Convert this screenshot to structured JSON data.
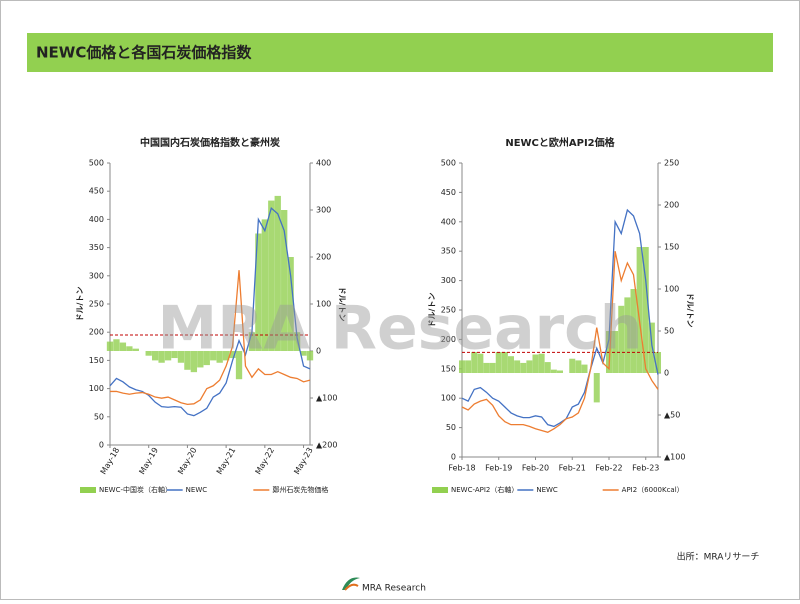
{
  "header": {
    "title": "NEWC価格と各国石炭価格指数"
  },
  "chart_data": [
    {
      "type": "line",
      "title": "中国国内石炭価格指数と豪州炭",
      "ylabel": "ドル/トン",
      "y2label": "ドル/トン",
      "categories": [
        "May-18",
        null,
        null,
        null,
        null,
        null,
        "May-19",
        null,
        null,
        null,
        null,
        null,
        "May-20",
        null,
        null,
        null,
        null,
        null,
        "May-21",
        null,
        null,
        null,
        null,
        null,
        "May-22",
        null,
        null,
        null,
        null,
        null,
        "May-23",
        null
      ],
      "ylim": [
        0,
        500
      ],
      "yticks": [
        0,
        50,
        100,
        150,
        200,
        250,
        300,
        350,
        400,
        450,
        500
      ],
      "y2lim": [
        -200,
        400
      ],
      "y2ticks": [
        {
          "value": -200,
          "label": "▲200"
        },
        {
          "value": -100,
          "label": "▲100"
        },
        0,
        100,
        200,
        300,
        400
      ],
      "ref_line": 195,
      "ref_color": "#c00000",
      "series": [
        {
          "name": "NEWC-中国炭（右軸）",
          "color": "#92d050",
          "axis": "y2",
          "kind": "area",
          "values": [
            20,
            25,
            18,
            10,
            5,
            0,
            -10,
            -20,
            -25,
            -20,
            -15,
            -25,
            -40,
            -45,
            -35,
            -30,
            -20,
            -25,
            -20,
            -15,
            -60,
            0,
            40,
            250,
            280,
            320,
            330,
            300,
            200,
            40,
            -10,
            -20
          ]
        },
        {
          "name": "NEWC",
          "color": "#4472c4",
          "values": [
            105,
            118,
            112,
            103,
            98,
            95,
            88,
            76,
            68,
            67,
            68,
            67,
            55,
            52,
            58,
            65,
            85,
            92,
            110,
            150,
            185,
            160,
            200,
            400,
            380,
            420,
            410,
            380,
            300,
            190,
            140,
            135
          ]
        },
        {
          "name": "鄭州石炭先物価格",
          "color": "#ed7d31",
          "values": [
            95,
            95,
            92,
            90,
            92,
            93,
            90,
            85,
            83,
            85,
            80,
            75,
            72,
            73,
            80,
            100,
            105,
            115,
            140,
            175,
            310,
            140,
            120,
            135,
            125,
            125,
            130,
            125,
            120,
            118,
            112,
            115
          ]
        }
      ]
    },
    {
      "type": "line",
      "title": "NEWCと欧州API2価格",
      "ylabel": "ドル/トン",
      "y2label": "ドル/トン",
      "categories": [
        "Feb-18",
        null,
        null,
        null,
        null,
        null,
        "Feb-19",
        null,
        null,
        null,
        null,
        null,
        "Feb-20",
        null,
        null,
        null,
        null,
        null,
        "Feb-21",
        null,
        null,
        null,
        null,
        null,
        "Feb-22",
        null,
        null,
        null,
        null,
        null,
        "Feb-23",
        null,
        null
      ],
      "ylim": [
        0,
        500
      ],
      "yticks": [
        0,
        50,
        100,
        150,
        200,
        250,
        300,
        350,
        400,
        450,
        500
      ],
      "y2lim": [
        -100,
        250
      ],
      "y2ticks": [
        {
          "value": -100,
          "label": "▲100"
        },
        {
          "value": -50,
          "label": "▲50"
        },
        0,
        50,
        100,
        150,
        200,
        250
      ],
      "ref_line": 178,
      "ref_color": "#c00000",
      "series": [
        {
          "name": "NEWC-API2（右軸）",
          "color": "#92d050",
          "axis": "y2",
          "kind": "area",
          "values": [
            15,
            15,
            25,
            23,
            12,
            12,
            25,
            25,
            20,
            15,
            12,
            15,
            22,
            23,
            13,
            4,
            3,
            0,
            17,
            15,
            10,
            0,
            -35,
            0,
            50,
            50,
            80,
            90,
            100,
            150,
            150,
            60,
            25
          ]
        },
        {
          "name": "NEWC",
          "color": "#4472c4",
          "values": [
            100,
            95,
            115,
            118,
            110,
            100,
            95,
            85,
            75,
            70,
            67,
            67,
            70,
            68,
            55,
            52,
            58,
            65,
            85,
            90,
            110,
            150,
            185,
            160,
            200,
            400,
            380,
            420,
            410,
            380,
            300,
            190,
            140
          ]
        },
        {
          "name": "API2（6000Kcal）",
          "color": "#ed7d31",
          "values": [
            85,
            80,
            90,
            95,
            98,
            88,
            70,
            60,
            55,
            55,
            55,
            52,
            48,
            45,
            42,
            48,
            55,
            65,
            68,
            75,
            100,
            150,
            220,
            160,
            150,
            350,
            300,
            330,
            310,
            230,
            150,
            130,
            115
          ]
        }
      ]
    }
  ],
  "source": "出所：MRAリサーチ",
  "logo": "MRA Research",
  "watermark": "MRA Research"
}
